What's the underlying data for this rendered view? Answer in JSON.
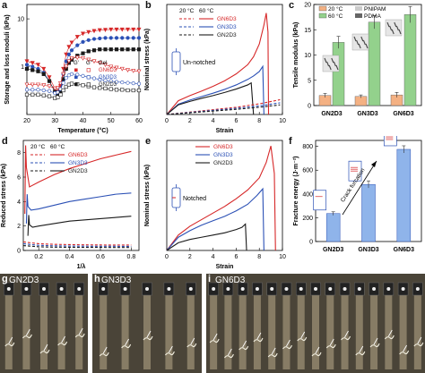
{
  "colors": {
    "gn6": "#d62728",
    "gn3": "#2b50b5",
    "gn2": "#1a1a1a",
    "pnipam": "#f4b183",
    "pdma": "#93d18c"
  },
  "panel_labels": [
    "a",
    "b",
    "c",
    "d",
    "e",
    "f",
    "g",
    "h",
    "i"
  ],
  "chart_data": [
    {
      "id": "a",
      "type": "scatter",
      "xlabel": "Temperature (°C)",
      "ylabel": "Storage and loss moduli (kPa)",
      "xticks": [
        "20",
        "30",
        "40",
        "50",
        "60"
      ],
      "yticks": [
        "1",
        "10"
      ],
      "xlim": [
        20,
        60
      ],
      "ylim": [
        0.1,
        20
      ],
      "yscale": "log",
      "legend_header": [
        "G'",
        "G''",
        "Gel"
      ],
      "legend": [
        "GN6D3",
        "GN3D3",
        "GN2D3"
      ],
      "series": [
        {
          "name": "GN6D3",
          "modulus": "G'",
          "x": [
            20,
            22,
            24,
            26,
            28,
            30,
            31,
            32,
            33,
            34,
            35,
            36,
            38,
            40,
            42,
            44,
            46,
            48,
            50,
            52,
            54,
            56,
            58,
            60
          ],
          "y": [
            1.3,
            1.2,
            1.1,
            0.9,
            0.6,
            0.35,
            0.3,
            0.4,
            0.9,
            1.8,
            2.6,
            3.2,
            4.2,
            4.9,
            5.3,
            5.6,
            5.8,
            5.9,
            6.0,
            6.0,
            6.0,
            6.0,
            6.0,
            6.0
          ]
        },
        {
          "name": "GN3D3",
          "modulus": "G'",
          "x": [
            20,
            22,
            24,
            26,
            28,
            30,
            31,
            32,
            33,
            34,
            35,
            36,
            38,
            40,
            42,
            44,
            46,
            48,
            50,
            52,
            54,
            56,
            58,
            60
          ],
          "y": [
            1.1,
            1.0,
            0.9,
            0.75,
            0.5,
            0.3,
            0.27,
            0.33,
            0.7,
            1.3,
            1.8,
            2.2,
            2.8,
            3.3,
            3.6,
            3.8,
            3.9,
            4.0,
            4.0,
            4.0,
            4.0,
            4.0,
            4.0,
            4.0
          ]
        },
        {
          "name": "GN2D3",
          "modulus": "G'",
          "x": [
            20,
            22,
            24,
            26,
            28,
            30,
            31,
            32,
            33,
            34,
            35,
            36,
            38,
            40,
            42,
            44,
            46,
            48,
            50,
            52,
            54,
            56,
            58,
            60
          ],
          "y": [
            0.9,
            0.85,
            0.8,
            0.7,
            0.5,
            0.3,
            0.26,
            0.3,
            0.55,
            0.9,
            1.2,
            1.4,
            1.7,
            1.9,
            2.1,
            2.2,
            2.3,
            2.3,
            2.3,
            2.3,
            2.3,
            2.3,
            2.3,
            2.3
          ]
        },
        {
          "name": "GN6D3",
          "modulus": "G''",
          "x": [
            20,
            22,
            24,
            26,
            28,
            30,
            31,
            32,
            33,
            34,
            35,
            36,
            38,
            40,
            42,
            44,
            46,
            48,
            50,
            52,
            54,
            56,
            58,
            60
          ],
          "y": [
            0.42,
            0.42,
            0.42,
            0.41,
            0.39,
            0.35,
            0.36,
            0.45,
            0.7,
            1.0,
            1.3,
            1.5,
            1.55,
            1.5,
            1.4,
            1.3,
            1.2,
            1.1,
            1.0,
            0.95,
            0.9,
            0.85,
            0.82,
            0.8
          ]
        },
        {
          "name": "GN3D3",
          "modulus": "G''",
          "x": [
            20,
            22,
            24,
            26,
            28,
            30,
            31,
            32,
            33,
            34,
            35,
            36,
            38,
            40,
            42,
            44,
            46,
            48,
            50,
            52,
            54,
            56,
            58,
            60
          ],
          "y": [
            0.33,
            0.33,
            0.33,
            0.32,
            0.31,
            0.28,
            0.29,
            0.34,
            0.46,
            0.58,
            0.66,
            0.7,
            0.68,
            0.64,
            0.6,
            0.57,
            0.54,
            0.52,
            0.5,
            0.48,
            0.47,
            0.46,
            0.45,
            0.44
          ]
        },
        {
          "name": "GN2D3",
          "modulus": "G''",
          "x": [
            20,
            22,
            24,
            26,
            28,
            30,
            31,
            32,
            33,
            34,
            35,
            36,
            38,
            40,
            42,
            44,
            46,
            48,
            50,
            52,
            54,
            56,
            58,
            60
          ],
          "y": [
            0.26,
            0.26,
            0.26,
            0.25,
            0.24,
            0.22,
            0.23,
            0.26,
            0.32,
            0.38,
            0.42,
            0.44,
            0.43,
            0.41,
            0.39,
            0.37,
            0.36,
            0.35,
            0.34,
            0.33,
            0.33,
            0.32,
            0.32,
            0.32
          ]
        }
      ]
    },
    {
      "id": "b",
      "type": "line",
      "xlabel": "Strain",
      "ylabel": "Nominal stress (kPa)",
      "xticks": [
        "0",
        "2",
        "4",
        "6",
        "8",
        "10"
      ],
      "xlim": [
        0,
        10
      ],
      "ylim": [
        0,
        32
      ],
      "legend_temps": [
        "20 °C",
        "60 °C"
      ],
      "legend": [
        "GN6D3",
        "GN3D3",
        "GN2D3"
      ],
      "annotation": "Un-notched",
      "series": [
        {
          "name": "GN6D3",
          "temp": "60",
          "x": [
            0,
            1,
            2,
            3,
            4,
            5,
            6,
            7,
            7.5,
            8,
            8.4,
            8.6,
            8.75,
            8.8
          ],
          "y": [
            0,
            4,
            5.5,
            6.8,
            8.2,
            9.8,
            11.8,
            14.5,
            16.8,
            20.5,
            26,
            29.5,
            24,
            0
          ]
        },
        {
          "name": "GN3D3",
          "temp": "60",
          "x": [
            0,
            1,
            2,
            3,
            4,
            5,
            6,
            7,
            7.5,
            8,
            8.3,
            8.4
          ],
          "y": [
            0,
            3,
            4.2,
            5.2,
            6.2,
            7.3,
            8.6,
            10.2,
            11.2,
            12.5,
            14,
            0
          ]
        },
        {
          "name": "GN2D3",
          "temp": "60",
          "x": [
            0,
            1,
            2,
            3,
            4,
            5,
            6,
            7,
            7.3,
            7.5
          ],
          "y": [
            0,
            2.8,
            3.8,
            4.7,
            5.5,
            6.4,
            7.4,
            8.6,
            9.2,
            0
          ]
        },
        {
          "name": "GN6D3",
          "temp": "20",
          "x": [
            0,
            2,
            4,
            6,
            8,
            9.8
          ],
          "y": [
            0,
            0.7,
            1.4,
            2.1,
            3.1,
            4.3
          ]
        },
        {
          "name": "GN3D3",
          "temp": "20",
          "x": [
            0,
            2,
            4,
            6,
            8,
            9.8
          ],
          "y": [
            0,
            0.6,
            1.2,
            1.8,
            2.5,
            3.4
          ]
        },
        {
          "name": "GN2D3",
          "temp": "20",
          "x": [
            0,
            2,
            4,
            6,
            8,
            9.8
          ],
          "y": [
            0,
            0.5,
            1.0,
            1.5,
            2.1,
            2.8
          ]
        }
      ]
    },
    {
      "id": "c",
      "type": "bar",
      "xlabel": "",
      "ylabel": "Tensile modulus (kPa)",
      "categories": [
        "GN2D3",
        "GN3D3",
        "GN6D3"
      ],
      "yticks": [
        "0",
        "5",
        "10",
        "15",
        "20"
      ],
      "ylim": [
        0,
        20
      ],
      "legend": [
        "20 °C",
        "60 °C",
        "PNIPAM",
        "PDMA"
      ],
      "series": [
        {
          "name": "20 °C",
          "values": [
            2.0,
            1.8,
            2.1
          ],
          "errors": [
            0.4,
            0.3,
            0.5
          ]
        },
        {
          "name": "60 °C",
          "values": [
            12.5,
            16.5,
            18.0
          ],
          "errors": [
            1.2,
            1.3,
            1.6
          ]
        }
      ]
    },
    {
      "id": "d",
      "type": "line",
      "xlabel": "1/λ",
      "ylabel": "Reduced stress (kPa)",
      "xticks": [
        "0.2",
        "0.4",
        "0.6",
        "0.8"
      ],
      "yticks": [
        "0",
        "2",
        "4",
        "6",
        "8"
      ],
      "xlim": [
        0.1,
        0.85
      ],
      "ylim": [
        0,
        9
      ],
      "legend_temps": [
        "20 °C",
        "60 °C"
      ],
      "legend": [
        "GN6D3",
        "GN3D3",
        "GN2D3"
      ],
      "series": [
        {
          "name": "GN6D3",
          "temp": "60",
          "x": [
            0.11,
            0.115,
            0.12,
            0.14,
            0.2,
            0.3,
            0.4,
            0.5,
            0.6,
            0.7,
            0.8
          ],
          "y": [
            3.0,
            8.6,
            6.8,
            5.2,
            5.6,
            6.2,
            6.7,
            7.1,
            7.5,
            7.8,
            8.1
          ]
        },
        {
          "name": "GN3D3",
          "temp": "60",
          "x": [
            0.12,
            0.125,
            0.13,
            0.15,
            0.2,
            0.3,
            0.4,
            0.5,
            0.6,
            0.7,
            0.8
          ],
          "y": [
            2.2,
            4.6,
            3.6,
            3.3,
            3.4,
            3.7,
            4.0,
            4.2,
            4.4,
            4.6,
            4.7
          ]
        },
        {
          "name": "GN2D3",
          "temp": "60",
          "x": [
            0.13,
            0.135,
            0.14,
            0.16,
            0.2,
            0.3,
            0.4,
            0.5,
            0.6,
            0.7,
            0.8
          ],
          "y": [
            1.2,
            2.9,
            2.1,
            1.9,
            2.0,
            2.2,
            2.4,
            2.5,
            2.6,
            2.7,
            2.8
          ]
        },
        {
          "name": "GN6D3",
          "temp": "20",
          "x": [
            0.1,
            0.2,
            0.3,
            0.4,
            0.5,
            0.6,
            0.7,
            0.8
          ],
          "y": [
            0.7,
            0.55,
            0.5,
            0.48,
            0.46,
            0.45,
            0.44,
            0.44
          ]
        },
        {
          "name": "GN3D3",
          "temp": "20",
          "x": [
            0.1,
            0.2,
            0.3,
            0.4,
            0.5,
            0.6,
            0.7,
            0.8
          ],
          "y": [
            0.55,
            0.42,
            0.38,
            0.36,
            0.35,
            0.34,
            0.34,
            0.33
          ]
        },
        {
          "name": "GN2D3",
          "temp": "20",
          "x": [
            0.1,
            0.2,
            0.3,
            0.4,
            0.5,
            0.6,
            0.7,
            0.8
          ],
          "y": [
            0.4,
            0.3,
            0.27,
            0.26,
            0.25,
            0.25,
            0.24,
            0.24
          ]
        }
      ]
    },
    {
      "id": "e",
      "type": "line",
      "xlabel": "Strain",
      "ylabel": "Nominal stress (kPa)",
      "xticks": [
        "0",
        "2",
        "4",
        "6",
        "8",
        "10"
      ],
      "xlim": [
        0,
        10
      ],
      "ylim": [
        0,
        100
      ],
      "legend": [
        "GN6D3",
        "GN3D3",
        "GN2D3"
      ],
      "annotation": "Notched",
      "series": [
        {
          "name": "GN6D3",
          "x": [
            0,
            1,
            2,
            3,
            4,
            5,
            6,
            7,
            8,
            8.6,
            9.0,
            9.3,
            9.4
          ],
          "y": [
            0,
            14,
            22,
            28,
            34,
            40,
            47,
            55,
            66,
            80,
            95,
            70,
            0
          ]
        },
        {
          "name": "GN3D3",
          "x": [
            0,
            1,
            2,
            3,
            4,
            5,
            6,
            7,
            7.8,
            8.3,
            8.4
          ],
          "y": [
            0,
            12,
            18,
            23,
            27,
            31,
            36,
            42,
            50,
            56,
            0
          ]
        },
        {
          "name": "GN2D3",
          "x": [
            0,
            1,
            2,
            3,
            4,
            5,
            6,
            6.5,
            6.8,
            6.9
          ],
          "y": [
            0,
            7,
            10,
            12,
            14,
            16,
            19,
            21,
            24,
            0
          ]
        }
      ]
    },
    {
      "id": "f",
      "type": "bar",
      "xlabel": "",
      "ylabel": "Fracture energy (J·m⁻²)",
      "categories": [
        "GN2D3",
        "GN3D3",
        "GN6D3"
      ],
      "yticks": [
        "0",
        "200",
        "400",
        "600",
        "800"
      ],
      "ylim": [
        0,
        850
      ],
      "annotation": "Crack furcation",
      "series": [
        {
          "name": "",
          "values": [
            235,
            480,
            775
          ],
          "errors": [
            15,
            30,
            30
          ]
        }
      ]
    }
  ],
  "photos": [
    {
      "id": "g",
      "label": "GN2D3"
    },
    {
      "id": "h",
      "label": "GN3D3"
    },
    {
      "id": "i",
      "label": "GN6D3"
    }
  ]
}
